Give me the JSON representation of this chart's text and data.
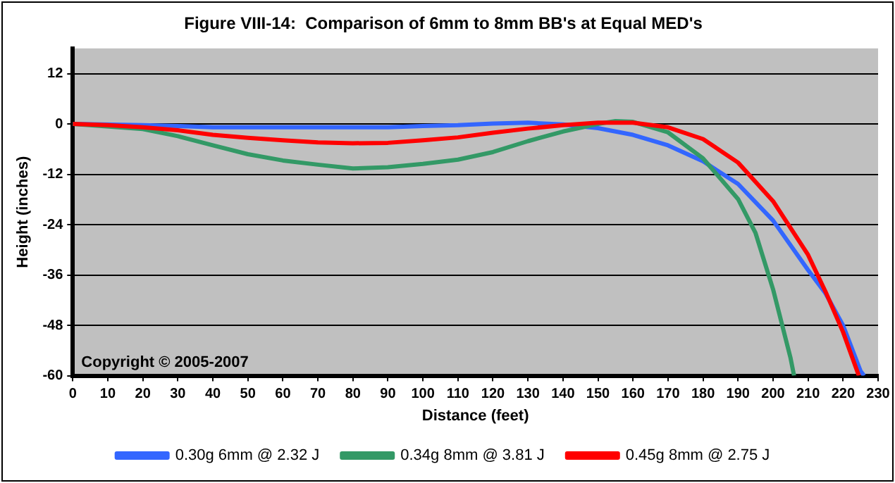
{
  "chart_data": {
    "type": "line",
    "title": "Figure VIII-14:  Comparison of 6mm to 8mm BB's at Equal MED's",
    "xlabel": "Distance (feet)",
    "ylabel": "Height (inches)",
    "annotations": [
      "Copyright © 2005-2007"
    ],
    "xlim": [
      0,
      230
    ],
    "xticks": [
      0,
      10,
      20,
      30,
      40,
      50,
      60,
      70,
      80,
      90,
      100,
      110,
      120,
      130,
      140,
      150,
      160,
      170,
      180,
      190,
      200,
      210,
      220,
      230
    ],
    "ylim": [
      -60,
      18
    ],
    "yticks": [
      12,
      0,
      -12,
      -24,
      -36,
      -48,
      -60
    ],
    "grid": "y",
    "legend": "bottom",
    "marker": "none",
    "line_style": "solid",
    "series": [
      {
        "name": "0.30g 6mm @ 2.32 J",
        "color": "#3366ff",
        "x": [
          0,
          20,
          30,
          40,
          60,
          80,
          90,
          100,
          110,
          120,
          130,
          140,
          150,
          160,
          170,
          180,
          190,
          200,
          210,
          215,
          220,
          225,
          226
        ],
        "values": [
          0,
          -0.3,
          -0.5,
          -0.8,
          -0.8,
          -0.8,
          -0.8,
          -0.5,
          -0.3,
          0.1,
          0.3,
          -0.1,
          -1,
          -2.6,
          -5.1,
          -8.9,
          -14.3,
          -23,
          -34.8,
          -40.4,
          -48,
          -58.9,
          -60
        ]
      },
      {
        "name": "0.34g 8mm @ 3.81 J",
        "color": "#339966",
        "x": [
          0,
          20,
          30,
          40,
          50,
          60,
          70,
          80,
          90,
          100,
          110,
          120,
          130,
          140,
          150,
          155,
          160,
          170,
          180,
          190,
          195,
          200,
          205,
          206
        ],
        "values": [
          0,
          -1.2,
          -2.9,
          -5.1,
          -7.2,
          -8.7,
          -9.7,
          -10.6,
          -10.3,
          -9.5,
          -8.5,
          -6.7,
          -4.1,
          -1.8,
          0,
          0.7,
          0.5,
          -2,
          -8.2,
          -17.9,
          -26,
          -39.4,
          -55.8,
          -60
        ]
      },
      {
        "name": "0.45g 8mm @ 2.75 J",
        "color": "#ff0000",
        "x": [
          0,
          10,
          20,
          30,
          40,
          50,
          60,
          70,
          80,
          90,
          100,
          110,
          120,
          130,
          140,
          150,
          160,
          170,
          180,
          190,
          200,
          210,
          215,
          220,
          224.5
        ],
        "values": [
          0,
          -0.3,
          -0.8,
          -1.5,
          -2.6,
          -3.3,
          -3.9,
          -4.4,
          -4.6,
          -4.5,
          -3.9,
          -3.2,
          -2.1,
          -1.1,
          -0.3,
          0.3,
          0.3,
          -0.8,
          -3.6,
          -9.2,
          -18.4,
          -31.2,
          -40,
          -49.6,
          -60
        ]
      }
    ]
  }
}
